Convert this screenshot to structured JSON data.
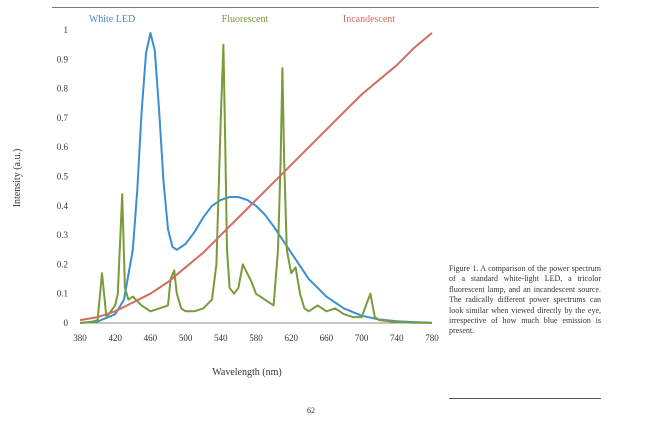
{
  "page": {
    "number": "62"
  },
  "caption": "Figure 1. A comparison of the power spectrum of a standard white-light LED, a tricolor fluorescent lamp, and an incandescent source. The radically different power spectrums can look similar when viewed directly by the eye, irrespective of how much blue emission is present.",
  "chart_data": {
    "type": "line",
    "xlabel": "Wavelength (nm)",
    "ylabel": "Intensity (a.u.)",
    "xlim": [
      380,
      780
    ],
    "ylim": [
      0,
      1
    ],
    "xticks": [
      380,
      420,
      460,
      500,
      540,
      580,
      620,
      660,
      700,
      740,
      780
    ],
    "xtick_labels": [
      "380",
      "420",
      "460",
      "500",
      "540",
      "580",
      "620",
      "660",
      "700",
      "740",
      "780"
    ],
    "yticks": [
      0,
      0.1,
      0.2,
      0.3,
      0.4,
      0.5,
      0.6,
      0.7,
      0.8,
      0.9,
      1
    ],
    "ytick_labels": [
      "0",
      "0.1",
      "0.2",
      "0.3",
      "0.4",
      "0.5",
      "0.6",
      "0.7",
      "0.8",
      "0.9",
      "1"
    ],
    "grid": false,
    "legend": "top, inline labels",
    "series": [
      {
        "name": "White LED",
        "color": "#3b8fd0",
        "x": [
          380,
          400,
          420,
          430,
          440,
          445,
          450,
          455,
          460,
          465,
          470,
          475,
          480,
          485,
          490,
          500,
          510,
          520,
          530,
          540,
          550,
          560,
          570,
          580,
          590,
          600,
          620,
          640,
          660,
          680,
          700,
          720,
          740,
          760,
          780
        ],
        "y": [
          0.0,
          0.005,
          0.03,
          0.08,
          0.25,
          0.45,
          0.72,
          0.92,
          0.99,
          0.93,
          0.72,
          0.48,
          0.32,
          0.26,
          0.25,
          0.27,
          0.31,
          0.36,
          0.4,
          0.42,
          0.43,
          0.43,
          0.42,
          0.4,
          0.37,
          0.33,
          0.24,
          0.15,
          0.09,
          0.05,
          0.025,
          0.012,
          0.006,
          0.003,
          0.001
        ]
      },
      {
        "name": "Fluorescent",
        "color": "#7a9a3c",
        "x": [
          380,
          395,
          400,
          405,
          410,
          415,
          420,
          423,
          428,
          431,
          435,
          440,
          450,
          460,
          470,
          480,
          483,
          487,
          490,
          495,
          500,
          510,
          520,
          530,
          535,
          540,
          543,
          545,
          547,
          550,
          555,
          560,
          565,
          570,
          575,
          580,
          590,
          600,
          605,
          608,
          610,
          612,
          615,
          620,
          625,
          630,
          635,
          640,
          645,
          650,
          660,
          670,
          680,
          690,
          700,
          705,
          710,
          715,
          720,
          740,
          760,
          780
        ],
        "y": [
          0.0,
          0.005,
          0.01,
          0.17,
          0.02,
          0.04,
          0.06,
          0.1,
          0.44,
          0.12,
          0.08,
          0.09,
          0.06,
          0.04,
          0.05,
          0.06,
          0.15,
          0.18,
          0.1,
          0.05,
          0.04,
          0.04,
          0.05,
          0.08,
          0.2,
          0.7,
          0.95,
          0.62,
          0.25,
          0.12,
          0.1,
          0.12,
          0.2,
          0.17,
          0.14,
          0.1,
          0.08,
          0.06,
          0.25,
          0.55,
          0.87,
          0.55,
          0.25,
          0.17,
          0.19,
          0.1,
          0.05,
          0.04,
          0.05,
          0.06,
          0.04,
          0.05,
          0.03,
          0.02,
          0.02,
          0.06,
          0.1,
          0.02,
          0.01,
          0.003,
          0.001,
          0.0
        ]
      },
      {
        "name": "Incandescent",
        "color": "#d06d62",
        "x": [
          380,
          400,
          420,
          440,
          460,
          480,
          500,
          520,
          540,
          560,
          580,
          600,
          620,
          640,
          660,
          680,
          700,
          720,
          740,
          760,
          780
        ],
        "y": [
          0.01,
          0.02,
          0.04,
          0.07,
          0.1,
          0.14,
          0.19,
          0.24,
          0.3,
          0.36,
          0.42,
          0.48,
          0.54,
          0.6,
          0.66,
          0.72,
          0.78,
          0.83,
          0.88,
          0.94,
          0.99
        ]
      }
    ]
  }
}
